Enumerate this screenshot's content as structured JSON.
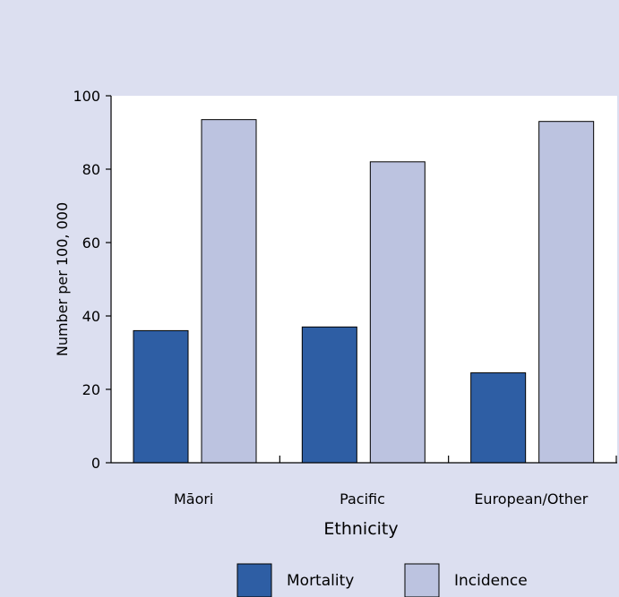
{
  "chart_data": {
    "type": "bar",
    "categories": [
      "Māori",
      "Pacific",
      "European/Other"
    ],
    "series": [
      {
        "name": "Mortality",
        "values": [
          36,
          37,
          24.5
        ],
        "color": "#2e5ea4"
      },
      {
        "name": "Incidence",
        "values": [
          93.5,
          82,
          93
        ],
        "color": "#bcc3e0"
      }
    ],
    "xlabel": "Ethnicity",
    "ylabel": "Number per 100, 000",
    "ylim": [
      0,
      100
    ],
    "yticks": [
      0,
      20,
      40,
      60,
      80,
      100
    ],
    "grid": false,
    "legend_position": "bottom",
    "plot_background": "#ffffff",
    "page_background": "#dcdff0",
    "bar_stroke": "#000000"
  }
}
